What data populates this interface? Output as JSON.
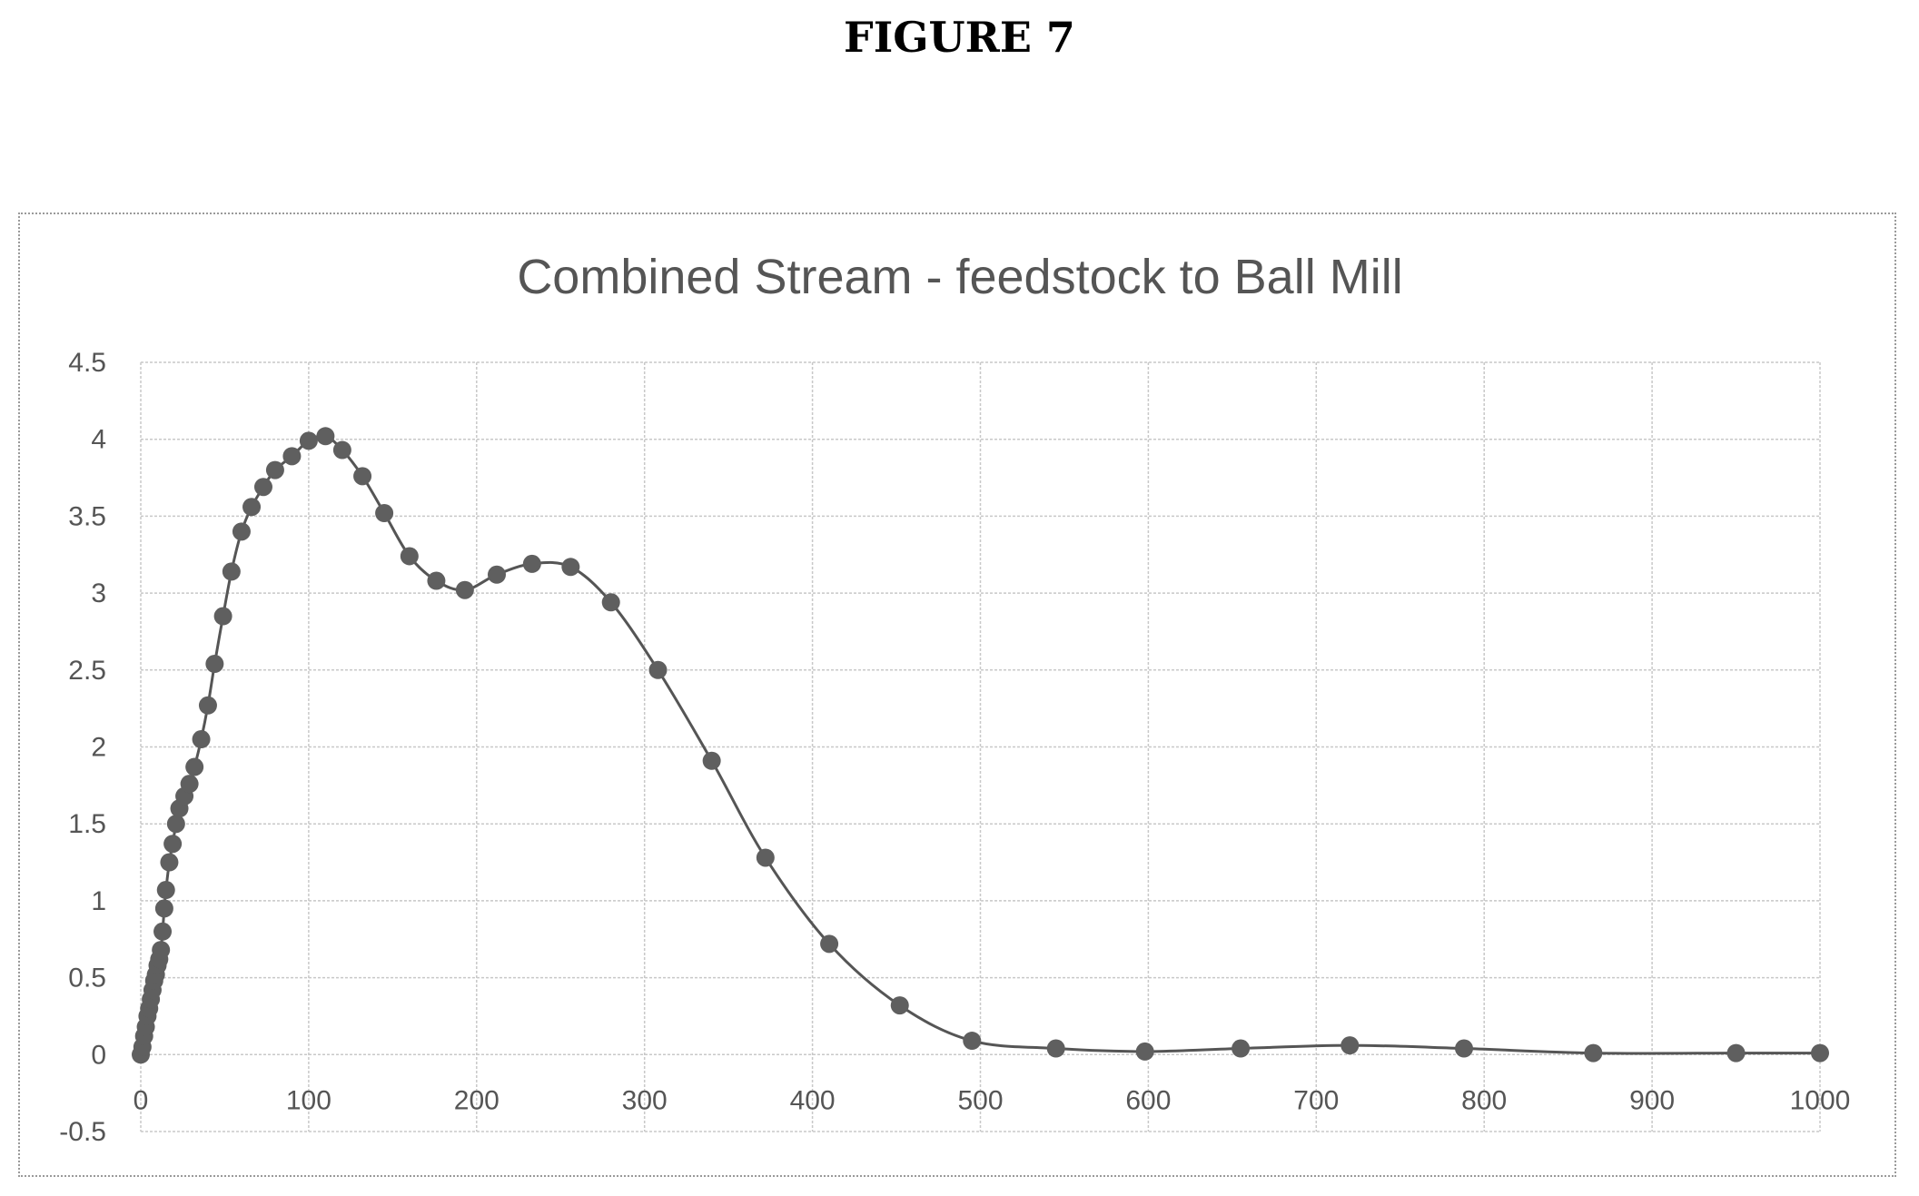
{
  "figure_label": "FIGURE 7",
  "chart_data": {
    "type": "scatter",
    "title": "Combined Stream - feedstock to Ball Mill",
    "xlabel": "",
    "ylabel": "",
    "xlim": [
      0,
      1000
    ],
    "ylim": [
      -0.5,
      4.5
    ],
    "x_ticks": [
      "0",
      "100",
      "200",
      "300",
      "400",
      "500",
      "600",
      "700",
      "800",
      "900",
      "1000"
    ],
    "y_ticks": [
      "-0.5",
      "0",
      "0.5",
      "1",
      "1.5",
      "2",
      "2.5",
      "3",
      "3.5",
      "4",
      "4.5"
    ],
    "grid": true,
    "legend": false,
    "line_color": "#555555",
    "marker_color": "#5f5f5f",
    "series": [
      {
        "x": [
          0,
          1,
          2,
          3,
          4,
          5,
          6,
          7,
          8,
          9,
          10,
          11,
          12,
          13,
          14,
          15,
          17,
          19,
          21,
          23,
          26,
          29,
          32,
          36,
          40,
          44,
          49,
          54,
          60,
          66,
          73,
          80,
          90,
          100,
          110,
          120,
          132,
          145,
          160,
          176,
          193,
          212,
          233,
          256,
          280,
          308,
          340,
          372,
          410,
          452,
          495,
          545,
          598,
          655,
          720,
          788,
          865,
          950,
          1000
        ],
        "y": [
          0.0,
          0.05,
          0.12,
          0.18,
          0.25,
          0.3,
          0.36,
          0.42,
          0.48,
          0.52,
          0.58,
          0.62,
          0.68,
          0.8,
          0.95,
          1.07,
          1.25,
          1.37,
          1.5,
          1.6,
          1.68,
          1.76,
          1.87,
          2.05,
          2.27,
          2.54,
          2.85,
          3.14,
          3.4,
          3.56,
          3.69,
          3.8,
          3.89,
          3.99,
          4.02,
          3.93,
          3.76,
          3.52,
          3.24,
          3.08,
          3.02,
          3.12,
          3.19,
          3.17,
          2.94,
          2.5,
          1.91,
          1.28,
          0.72,
          0.32,
          0.09,
          0.04,
          0.02,
          0.04,
          0.06,
          0.04,
          0.01,
          0.01,
          0.01
        ]
      }
    ]
  }
}
